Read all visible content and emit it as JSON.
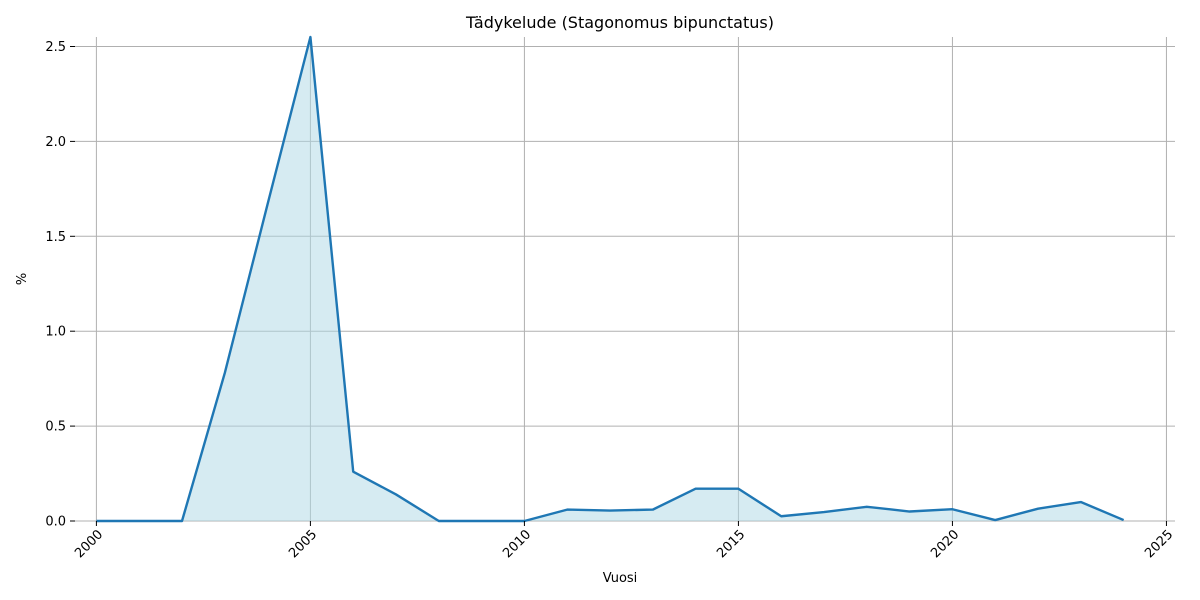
{
  "chart_data": {
    "type": "area",
    "title": "Tädykelude (Stagonomus bipunctatus)",
    "xlabel": "Vuosi",
    "ylabel": "%",
    "xlim": [
      1999.5,
      2025.2
    ],
    "ylim": [
      0,
      2.55
    ],
    "xticks": [
      2000,
      2005,
      2010,
      2015,
      2020,
      2025
    ],
    "yticks": [
      0.0,
      0.5,
      1.0,
      1.5,
      2.0,
      2.5
    ],
    "xtick_labels": [
      "2000",
      "2005",
      "2010",
      "2015",
      "2020",
      "2025"
    ],
    "ytick_labels": [
      "0.0",
      "0.5",
      "1.0",
      "1.5",
      "2.0",
      "2.5"
    ],
    "grid": true,
    "legend": "none",
    "line_color": "#1f77b4",
    "fill_color": "#add8e6",
    "x": [
      2000,
      2001,
      2002,
      2003,
      2004,
      2005,
      2006,
      2007,
      2008,
      2009,
      2010,
      2011,
      2012,
      2013,
      2014,
      2015,
      2016,
      2017,
      2018,
      2019,
      2020,
      2021,
      2022,
      2023,
      2024
    ],
    "values": [
      0.0,
      0.0,
      0.0,
      0.78,
      1.67,
      2.55,
      0.26,
      0.14,
      0.0,
      0.0,
      0.0,
      0.06,
      0.055,
      0.06,
      0.17,
      0.17,
      0.025,
      0.047,
      0.075,
      0.05,
      0.062,
      0.005,
      0.065,
      0.1,
      0.005
    ]
  }
}
